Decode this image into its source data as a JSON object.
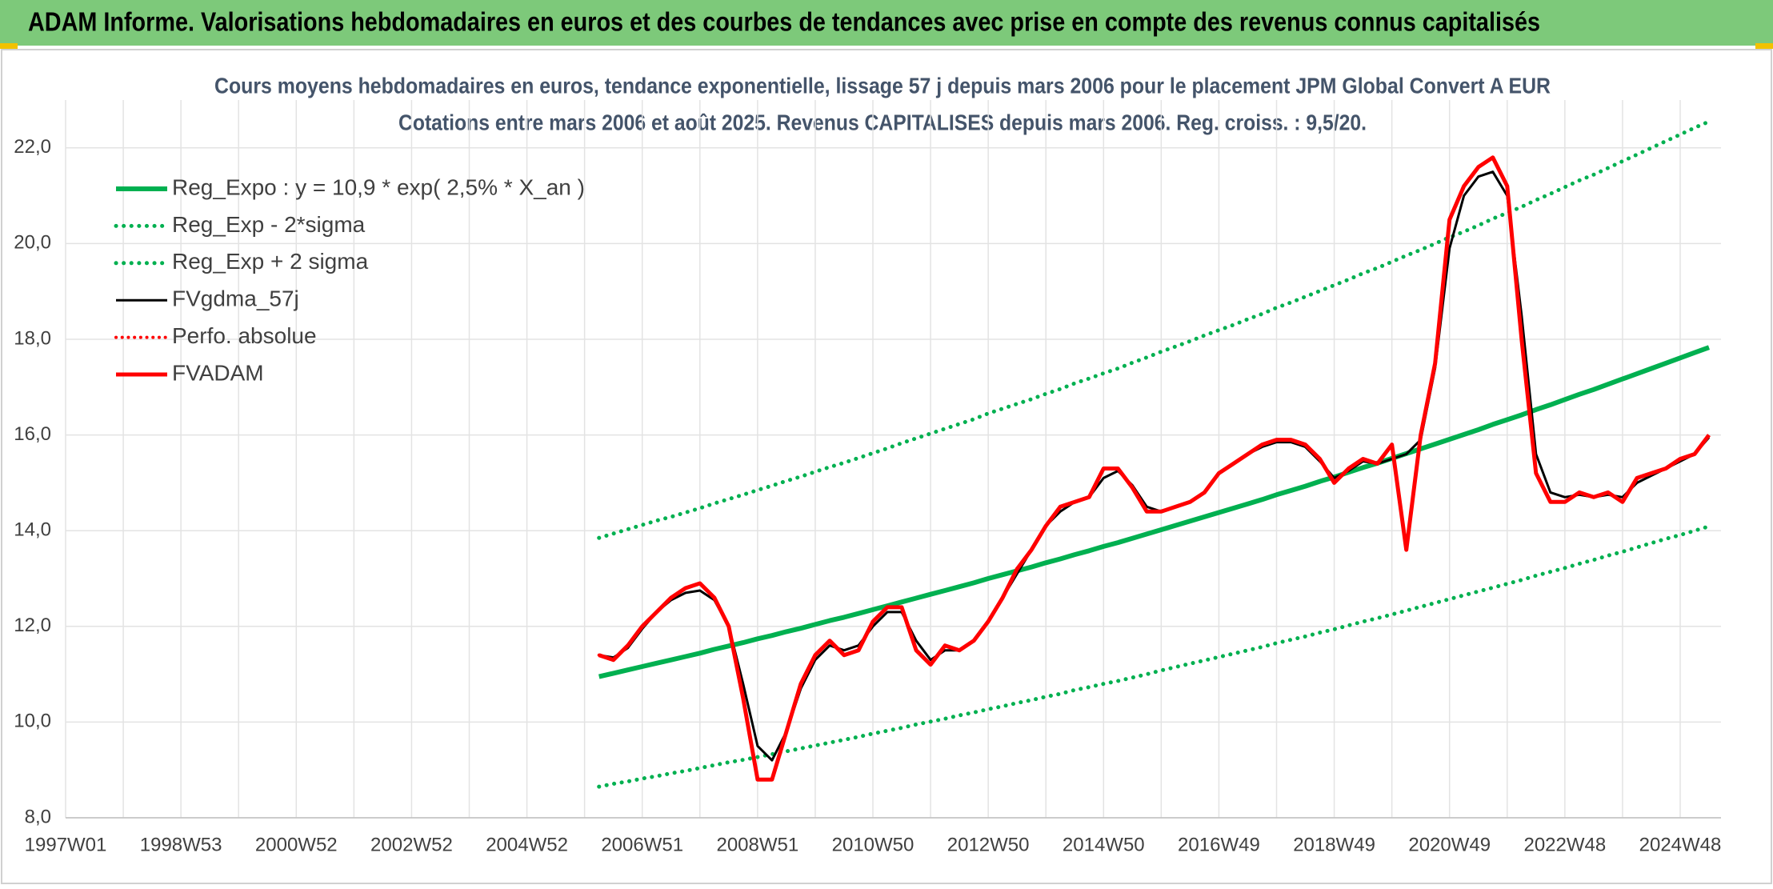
{
  "header": {
    "title": "ADAM Informe. Valorisations hebdomadaires en euros et des courbes de tendances avec prise en compte des revenus connus capitalisés"
  },
  "chart_data": {
    "type": "line",
    "title": "Cours moyens hebdomadaires en euros, tendance exponentielle, lissage 57 j depuis mars 2006 pour le placement JPM Global Convert A EUR",
    "subtitle": "Cotations entre mars 2006 et août 2025. Revenus CAPITALISES depuis mars 2006. Reg. croiss. : 9,5/20.",
    "categories": [
      "1997W01",
      null,
      null,
      null,
      null,
      null,
      null,
      null,
      "1998W53",
      null,
      null,
      null,
      null,
      null,
      null,
      null,
      "2000W52",
      null,
      null,
      null,
      null,
      null,
      null,
      null,
      "2002W52",
      null,
      null,
      null,
      null,
      null,
      null,
      null,
      "2004W52",
      null,
      null,
      null,
      null,
      null,
      null,
      null,
      "2006W51",
      null,
      null,
      null,
      null,
      null,
      null,
      null,
      "2008W51",
      null,
      null,
      null,
      null,
      null,
      null,
      null,
      "2010W50",
      null,
      null,
      null,
      null,
      null,
      null,
      null,
      "2012W50",
      null,
      null,
      null,
      null,
      null,
      null,
      null,
      "2014W50",
      null,
      null,
      null,
      null,
      null,
      null,
      null,
      "2016W49",
      null,
      null,
      null,
      null,
      null,
      null,
      null,
      "2018W49",
      null,
      null,
      null,
      null,
      null,
      null,
      null,
      "2020W49",
      null,
      null,
      null,
      null,
      null,
      null,
      null,
      "2022W48",
      null,
      null,
      null,
      null,
      null,
      null,
      null,
      "2024W48",
      null,
      null
    ],
    "ylim": [
      8,
      23
    ],
    "yticks": [
      {
        "value": 8,
        "label": "8,0"
      },
      {
        "value": 10,
        "label": "10,0"
      },
      {
        "value": 12,
        "label": "12,0"
      },
      {
        "value": 14,
        "label": "14,0"
      },
      {
        "value": 16,
        "label": "16,0"
      },
      {
        "value": 18,
        "label": "18,0"
      },
      {
        "value": 20,
        "label": "20,0"
      },
      {
        "value": 22,
        "label": "22,0"
      }
    ],
    "grid": true,
    "legend": "upper left",
    "series": [
      {
        "name": "Reg_Expo : y = 10,9 * exp( 2,5% *  X_an )",
        "color": "#00b050",
        "line_style": "solid",
        "width": 6,
        "values": [
          null,
          null,
          null,
          null,
          null,
          null,
          null,
          null,
          null,
          null,
          null,
          null,
          null,
          null,
          null,
          null,
          null,
          null,
          null,
          null,
          null,
          null,
          null,
          null,
          null,
          null,
          null,
          null,
          null,
          null,
          null,
          null,
          null,
          null,
          null,
          null,
          null,
          10.95,
          11.02,
          11.09,
          11.16,
          11.23,
          11.3,
          11.37,
          11.44,
          11.52,
          11.59,
          11.66,
          11.74,
          11.81,
          11.89,
          11.96,
          12.04,
          12.12,
          12.19,
          12.27,
          12.35,
          12.43,
          12.51,
          12.59,
          12.67,
          12.75,
          12.83,
          12.91,
          13.0,
          13.08,
          13.16,
          13.24,
          13.33,
          13.41,
          13.5,
          13.58,
          13.67,
          13.75,
          13.84,
          13.93,
          14.02,
          14.11,
          14.2,
          14.29,
          14.38,
          14.47,
          14.56,
          14.65,
          14.75,
          14.84,
          14.93,
          15.03,
          15.12,
          15.22,
          15.32,
          15.41,
          15.51,
          15.61,
          15.71,
          15.81,
          15.91,
          16.01,
          16.11,
          16.22,
          16.32,
          16.42,
          16.53,
          16.63,
          16.74,
          16.85,
          16.95,
          17.06,
          17.17,
          17.28,
          17.39,
          17.5,
          17.61,
          17.72,
          17.83
        ]
      },
      {
        "name": "Reg_Exp - 2*sigma",
        "color": "#00b050",
        "line_style": "dotted",
        "width": 5,
        "values": [
          null,
          null,
          null,
          null,
          null,
          null,
          null,
          null,
          null,
          null,
          null,
          null,
          null,
          null,
          null,
          null,
          null,
          null,
          null,
          null,
          null,
          null,
          null,
          null,
          null,
          null,
          null,
          null,
          null,
          null,
          null,
          null,
          null,
          null,
          null,
          null,
          null,
          8.65,
          8.71,
          8.76,
          8.82,
          8.87,
          8.93,
          8.98,
          9.04,
          9.1,
          9.16,
          9.21,
          9.27,
          9.33,
          9.39,
          9.45,
          9.51,
          9.57,
          9.63,
          9.69,
          9.76,
          9.82,
          9.88,
          9.95,
          10.01,
          10.07,
          10.14,
          10.2,
          10.27,
          10.33,
          10.4,
          10.46,
          10.53,
          10.59,
          10.67,
          10.73,
          10.8,
          10.86,
          10.93,
          11.0,
          11.08,
          11.15,
          11.22,
          11.29,
          11.36,
          11.43,
          11.5,
          11.57,
          11.65,
          11.72,
          11.79,
          11.87,
          11.94,
          12.02,
          12.1,
          12.17,
          12.25,
          12.33,
          12.41,
          12.49,
          12.57,
          12.65,
          12.73,
          12.81,
          12.89,
          12.97,
          13.06,
          13.14,
          13.22,
          13.31,
          13.39,
          13.48,
          13.56,
          13.65,
          13.74,
          13.83,
          13.91,
          14.0,
          14.09
        ]
      },
      {
        "name": "Reg_Exp + 2 sigma",
        "color": "#00b050",
        "line_style": "dotted",
        "width": 5,
        "values": [
          null,
          null,
          null,
          null,
          null,
          null,
          null,
          null,
          null,
          null,
          null,
          null,
          null,
          null,
          null,
          null,
          null,
          null,
          null,
          null,
          null,
          null,
          null,
          null,
          null,
          null,
          null,
          null,
          null,
          null,
          null,
          null,
          null,
          null,
          null,
          null,
          null,
          13.85,
          13.94,
          14.03,
          14.12,
          14.21,
          14.29,
          14.38,
          14.47,
          14.57,
          14.66,
          14.75,
          14.85,
          14.94,
          15.04,
          15.13,
          15.23,
          15.33,
          15.42,
          15.52,
          15.62,
          15.72,
          15.83,
          15.93,
          16.03,
          16.13,
          16.23,
          16.33,
          16.45,
          16.55,
          16.65,
          16.75,
          16.86,
          16.96,
          17.08,
          17.18,
          17.29,
          17.39,
          17.51,
          17.62,
          17.74,
          17.85,
          17.96,
          18.08,
          18.19,
          18.3,
          18.42,
          18.53,
          18.66,
          18.77,
          18.89,
          19.01,
          19.13,
          19.25,
          19.38,
          19.49,
          19.62,
          19.75,
          19.87,
          20.0,
          20.13,
          20.25,
          20.38,
          20.52,
          20.64,
          20.77,
          20.91,
          21.04,
          21.18,
          21.32,
          21.44,
          21.58,
          21.72,
          21.86,
          22.0,
          22.14,
          22.28,
          22.42,
          22.55
        ]
      },
      {
        "name": "FVgdma_57j",
        "color": "#000000",
        "line_style": "solid",
        "width": 3,
        "values": [
          null,
          null,
          null,
          null,
          null,
          null,
          null,
          null,
          null,
          null,
          null,
          null,
          null,
          null,
          null,
          null,
          null,
          null,
          null,
          null,
          null,
          null,
          null,
          null,
          null,
          null,
          null,
          null,
          null,
          null,
          null,
          null,
          null,
          null,
          null,
          null,
          null,
          11.4,
          11.35,
          11.55,
          11.95,
          12.3,
          12.55,
          12.7,
          12.75,
          12.55,
          12.0,
          10.8,
          9.5,
          9.2,
          9.8,
          10.7,
          11.3,
          11.6,
          11.5,
          11.6,
          12.0,
          12.3,
          12.3,
          11.7,
          11.3,
          11.5,
          11.5,
          11.7,
          12.1,
          12.6,
          13.1,
          13.6,
          14.1,
          14.4,
          14.6,
          14.7,
          15.1,
          15.25,
          14.95,
          14.5,
          14.4,
          14.5,
          14.6,
          14.8,
          15.2,
          15.4,
          15.6,
          15.75,
          15.85,
          15.85,
          15.75,
          15.45,
          15.1,
          15.25,
          15.45,
          15.4,
          15.5,
          15.6,
          15.9,
          17.4,
          19.9,
          21.0,
          21.4,
          21.5,
          21.0,
          18.5,
          15.6,
          14.8,
          14.7,
          14.75,
          14.7,
          14.75,
          14.7,
          15.0,
          15.15,
          15.3,
          15.45,
          15.6,
          15.95
        ]
      },
      {
        "name": "Perfo. absolue",
        "color": "#ff0000",
        "line_style": "dotted",
        "width": 4,
        "values": [
          null,
          null,
          null,
          null,
          null,
          null,
          null,
          null,
          null,
          null,
          null,
          null,
          null,
          null,
          null,
          null,
          null,
          null,
          null,
          null,
          null,
          null,
          null,
          null,
          null,
          null,
          null,
          null,
          null,
          null,
          null,
          null,
          null,
          null,
          null,
          null,
          null,
          11.4,
          11.3,
          11.6,
          12.0,
          12.3,
          12.6,
          12.8,
          12.9,
          12.6,
          12.0,
          10.5,
          8.8,
          8.8,
          9.8,
          10.8,
          11.4,
          11.7,
          11.4,
          11.5,
          12.1,
          12.4,
          12.4,
          11.5,
          11.2,
          11.6,
          11.5,
          11.7,
          12.1,
          12.6,
          13.2,
          13.6,
          14.1,
          14.5,
          14.6,
          14.7,
          15.3,
          15.3,
          14.9,
          14.4,
          14.4,
          14.5,
          14.6,
          14.8,
          15.2,
          15.4,
          15.6,
          15.8,
          15.9,
          15.9,
          15.8,
          15.5,
          15.0,
          15.3,
          15.5,
          15.4,
          15.8,
          13.6,
          16.0,
          17.5,
          20.5,
          21.2,
          21.6,
          21.8,
          21.2,
          18.0,
          15.2,
          14.6,
          14.6,
          14.8,
          14.7,
          14.8,
          14.6,
          15.1,
          15.2,
          15.3,
          15.5,
          15.6,
          16.0
        ]
      },
      {
        "name": "FVADAM",
        "color": "#ff0000",
        "line_style": "solid",
        "width": 5,
        "values": [
          null,
          null,
          null,
          null,
          null,
          null,
          null,
          null,
          null,
          null,
          null,
          null,
          null,
          null,
          null,
          null,
          null,
          null,
          null,
          null,
          null,
          null,
          null,
          null,
          null,
          null,
          null,
          null,
          null,
          null,
          null,
          null,
          null,
          null,
          null,
          null,
          null,
          11.4,
          11.3,
          11.6,
          12.0,
          12.3,
          12.6,
          12.8,
          12.9,
          12.6,
          12.0,
          10.5,
          8.8,
          8.8,
          9.8,
          10.8,
          11.4,
          11.7,
          11.4,
          11.5,
          12.1,
          12.4,
          12.4,
          11.5,
          11.2,
          11.6,
          11.5,
          11.7,
          12.1,
          12.6,
          13.2,
          13.6,
          14.1,
          14.5,
          14.6,
          14.7,
          15.3,
          15.3,
          14.9,
          14.4,
          14.4,
          14.5,
          14.6,
          14.8,
          15.2,
          15.4,
          15.6,
          15.8,
          15.9,
          15.9,
          15.8,
          15.5,
          15.0,
          15.3,
          15.5,
          15.4,
          15.8,
          13.6,
          16.0,
          17.5,
          20.5,
          21.2,
          21.6,
          21.8,
          21.2,
          18.0,
          15.2,
          14.6,
          14.6,
          14.8,
          14.7,
          14.8,
          14.6,
          15.1,
          15.2,
          15.3,
          15.5,
          15.6,
          16.0
        ]
      }
    ]
  }
}
